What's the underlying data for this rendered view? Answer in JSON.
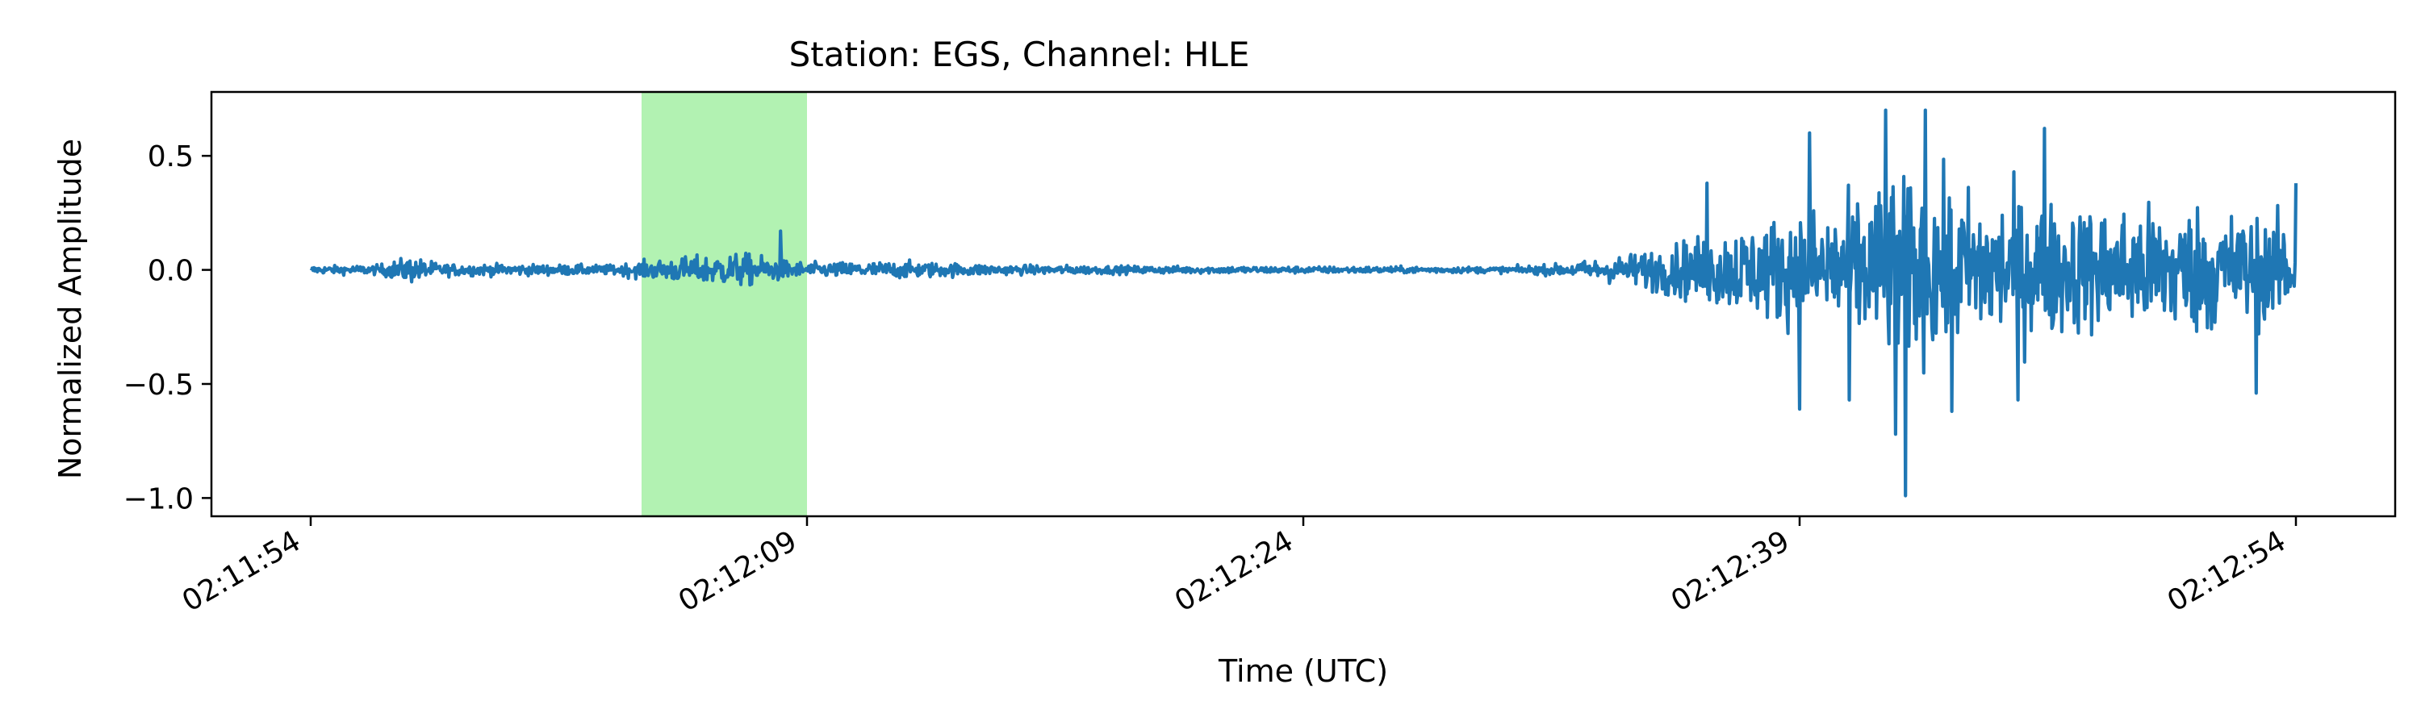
{
  "chart_data": {
    "type": "line",
    "title": "Station: EGS, Channel: HLE",
    "xlabel": "Time (UTC)",
    "ylabel": "Normalized Amplitude",
    "x_range": [
      "02:11:51",
      "02:12:57"
    ],
    "ylim": [
      -1.08,
      0.78
    ],
    "x_ticks": [
      "02:11:54",
      "02:12:09",
      "02:12:24",
      "02:12:39",
      "02:12:54"
    ],
    "y_ticks": [
      0.5,
      0.0,
      -0.5,
      -1.0
    ],
    "y_tick_labels": [
      "0.5",
      "0.0",
      "−0.5",
      "−1.0"
    ],
    "grid": false,
    "highlight": {
      "start": "02:12:04",
      "end": "02:12:09",
      "color": "#b2f2b2"
    },
    "series": [
      {
        "color": "#1f77b4",
        "x_start": "02:11:54",
        "x_end": "02:12:54",
        "envelope": [
          {
            "t": "02:11:54",
            "amp": 0.03
          },
          {
            "t": "02:11:56",
            "amp": 0.04
          },
          {
            "t": "02:11:57",
            "amp": 0.11
          },
          {
            "t": "02:11:58",
            "amp": 0.05
          },
          {
            "t": "02:12:03",
            "amp": 0.04
          },
          {
            "t": "02:12:05",
            "amp": 0.1
          },
          {
            "t": "02:12:07",
            "amp": 0.14
          },
          {
            "t": "02:12:09",
            "amp": 0.06
          },
          {
            "t": "02:12:12",
            "amp": 0.07
          },
          {
            "t": "02:12:15",
            "amp": 0.04
          },
          {
            "t": "02:12:20",
            "amp": 0.03
          },
          {
            "t": "02:12:30",
            "amp": 0.025
          },
          {
            "t": "02:12:32",
            "amp": 0.05
          },
          {
            "t": "02:12:34",
            "amp": 0.14
          },
          {
            "t": "02:12:37",
            "amp": 0.35
          },
          {
            "t": "02:12:40",
            "amp": 0.55
          },
          {
            "t": "02:12:42",
            "amp": 0.75
          },
          {
            "t": "02:12:44",
            "amp": 0.65
          },
          {
            "t": "02:12:48",
            "amp": 0.52
          },
          {
            "t": "02:12:51",
            "amp": 0.55
          },
          {
            "t": "02:12:54",
            "amp": 0.38
          }
        ],
        "peaks": [
          {
            "t": "02:12:08.2",
            "value": 0.17
          },
          {
            "t": "02:12:36.2",
            "value": 0.38
          },
          {
            "t": "02:12:39.3",
            "value": 0.6
          },
          {
            "t": "02:12:39.0",
            "value": -0.61
          },
          {
            "t": "02:12:41.6",
            "value": 0.7
          },
          {
            "t": "02:12:42.8",
            "value": 0.7
          },
          {
            "t": "02:12:41.9",
            "value": -0.72
          },
          {
            "t": "02:12:40.5",
            "value": -0.57
          },
          {
            "t": "02:12:42.2",
            "value": -0.99
          },
          {
            "t": "02:12:43.6",
            "value": -0.62
          },
          {
            "t": "02:12:45.6",
            "value": -0.57
          },
          {
            "t": "02:12:46.4",
            "value": 0.62
          },
          {
            "t": "02:12:52.8",
            "value": -0.54
          },
          {
            "t": "02:12:54.0",
            "value": 0.38
          }
        ]
      }
    ]
  }
}
